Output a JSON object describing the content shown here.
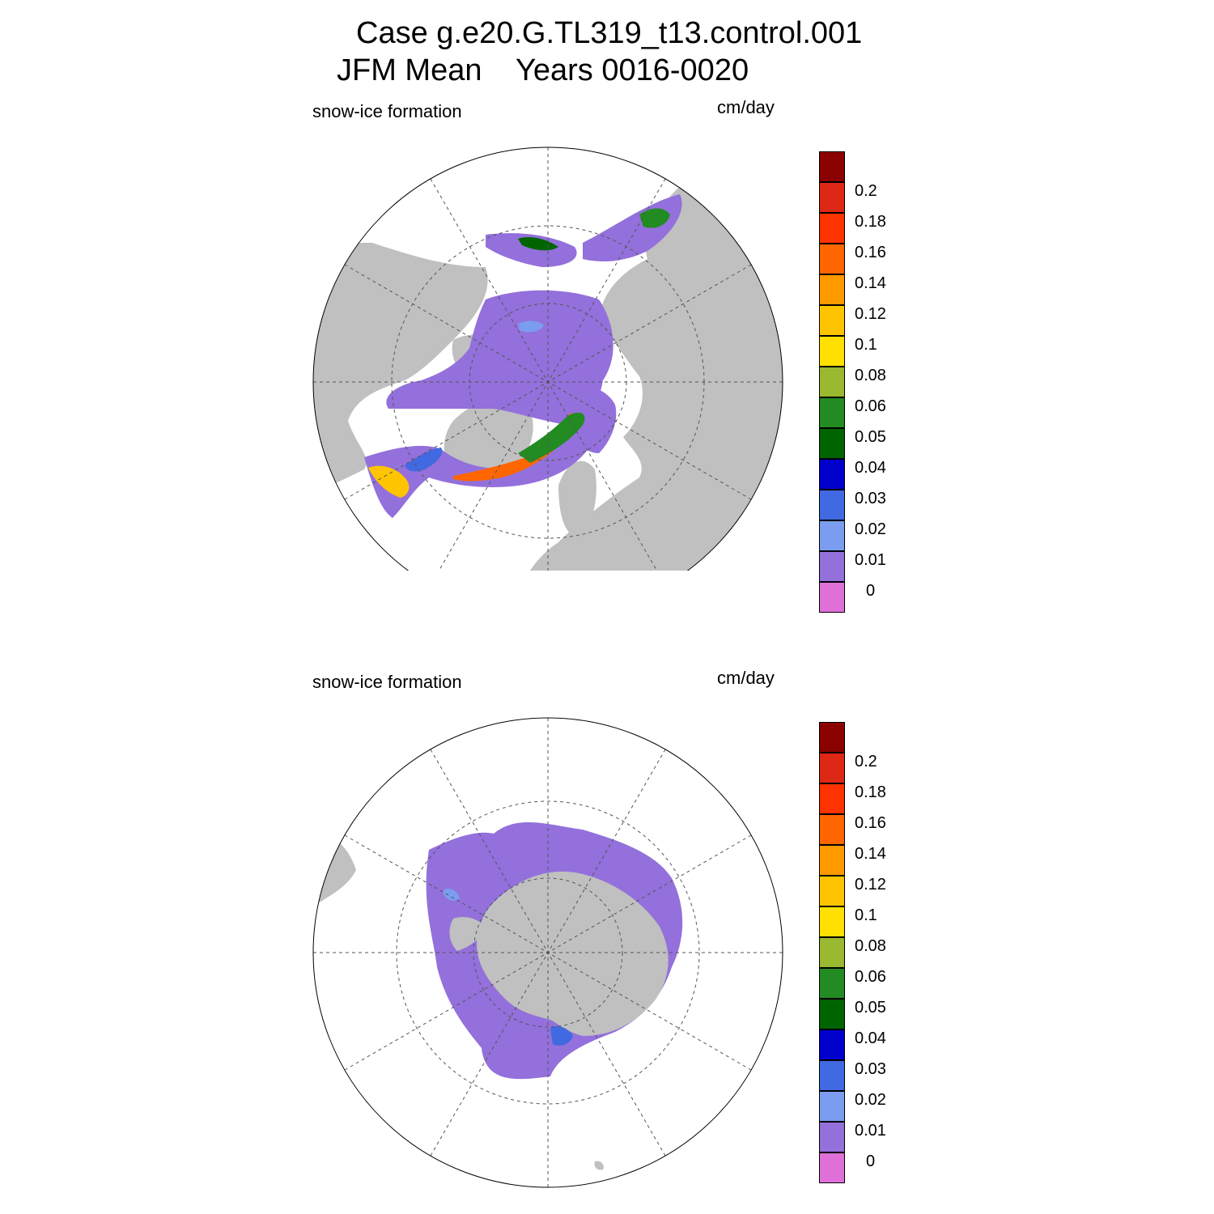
{
  "title": {
    "line1": "Case g.e20.G.TL319_t13.control.001",
    "line2": "JFM Mean    Years 0016-0020"
  },
  "panels": [
    {
      "id": "north",
      "variable": "snow-ice formation",
      "units": "cm/day",
      "hemisphere": "northern"
    },
    {
      "id": "south",
      "variable": "snow-ice formation",
      "units": "cm/day",
      "hemisphere": "southern"
    }
  ],
  "colorbar": {
    "labels": [
      "0",
      "0.01",
      "0.02",
      "0.03",
      "0.04",
      "0.05",
      "0.06",
      "0.08",
      "0.1",
      "0.12",
      "0.14",
      "0.16",
      "0.18",
      "0.2"
    ],
    "colors_bottom_to_top": [
      "#e070d8",
      "#9370db",
      "#7b9df0",
      "#4169e1",
      "#0000cd",
      "#006400",
      "#228b22",
      "#9ab830",
      "#ffe000",
      "#ffc400",
      "#ff9900",
      "#ff6600",
      "#ff3300",
      "#dd2815",
      "#8b0000"
    ]
  },
  "map_colors": {
    "land": "#c0c0c0",
    "ocean": "#ffffff",
    "grid": "#555555"
  }
}
